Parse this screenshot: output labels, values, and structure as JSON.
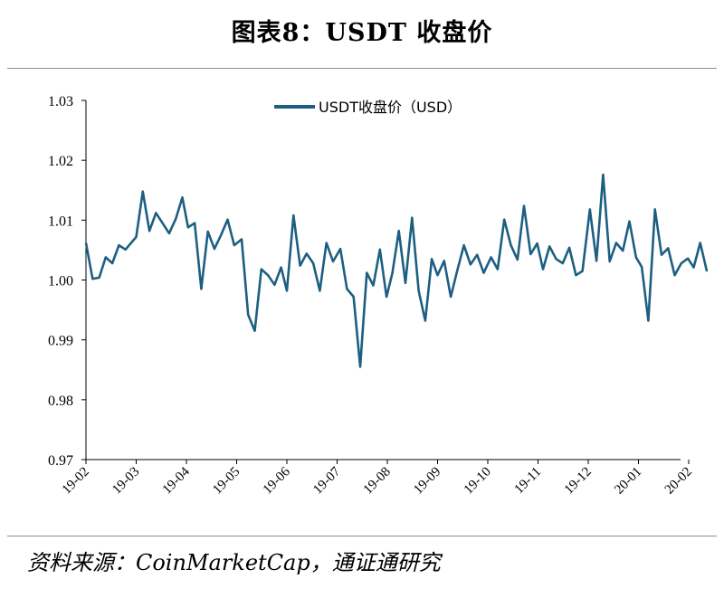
{
  "title": "图表8：USDT 收盘价",
  "source": "资料来源：CoinMarketCap，通证通研究",
  "colors": {
    "line": "#1d5f82",
    "axis": "#000000"
  },
  "chart_data": {
    "type": "line",
    "title": "图表8：USDT 收盘价",
    "xlabel": "",
    "ylabel": "",
    "ylim": [
      0.97,
      1.03
    ],
    "y_ticks": [
      "1.03",
      "1.02",
      "1.01",
      "1.00",
      "0.99",
      "0.98",
      "0.97"
    ],
    "x_ticks": [
      "19-02",
      "19-03",
      "19-04",
      "19-05",
      "19-06",
      "19-07",
      "19-08",
      "19-09",
      "19-10",
      "19-11",
      "19-12",
      "20-01",
      "20-02"
    ],
    "grid": false,
    "legend": "top-center",
    "series": [
      {
        "name": "USDT收盘价（USD）",
        "x": [
          "19-02-01",
          "19-02-05",
          "19-02-09",
          "19-02-13",
          "19-02-17",
          "19-02-21",
          "19-02-25",
          "19-03-01",
          "19-03-05",
          "19-03-09",
          "19-03-13",
          "19-03-17",
          "19-03-21",
          "19-03-25",
          "19-03-29",
          "19-04-02",
          "19-04-06",
          "19-04-10",
          "19-04-14",
          "19-04-18",
          "19-04-22",
          "19-04-26",
          "19-04-30",
          "19-05-04",
          "19-05-08",
          "19-05-12",
          "19-05-16",
          "19-05-20",
          "19-05-24",
          "19-05-28",
          "19-06-01",
          "19-06-05",
          "19-06-09",
          "19-06-13",
          "19-06-17",
          "19-06-21",
          "19-06-25",
          "19-06-29",
          "19-07-03",
          "19-07-07",
          "19-07-11",
          "19-07-15",
          "19-07-19",
          "19-07-23",
          "19-07-27",
          "19-07-31",
          "19-08-04",
          "19-08-08",
          "19-08-12",
          "19-08-16",
          "19-08-20",
          "19-08-24",
          "19-08-28",
          "19-09-01",
          "19-09-05",
          "19-09-09",
          "19-09-13",
          "19-09-17",
          "19-09-21",
          "19-09-25",
          "19-09-29",
          "19-10-03",
          "19-10-07",
          "19-10-11",
          "19-10-15",
          "19-10-19",
          "19-10-23",
          "19-10-27",
          "19-10-31",
          "19-11-04",
          "19-11-08",
          "19-11-12",
          "19-11-16",
          "19-11-20",
          "19-11-24",
          "19-11-28",
          "19-12-02",
          "19-12-06",
          "19-12-10",
          "19-12-14",
          "19-12-18",
          "19-12-22",
          "19-12-26",
          "19-12-30",
          "20-01-03",
          "20-01-07",
          "20-01-11",
          "20-01-15",
          "20-01-19",
          "20-01-23",
          "20-01-27",
          "20-01-31",
          "20-02-04",
          "20-02-08",
          "20-02-12"
        ],
        "values": [
          1.0062,
          1.0002,
          1.0004,
          1.0038,
          1.0028,
          1.0058,
          1.0051,
          1.0072,
          1.0148,
          1.0082,
          1.0112,
          1.0095,
          1.0078,
          1.0102,
          1.0138,
          1.0088,
          1.0095,
          0.9985,
          1.0081,
          1.0052,
          1.0075,
          1.0101,
          1.0058,
          1.0068,
          0.9942,
          0.9915,
          1.0018,
          1.0008,
          0.9992,
          1.0021,
          0.9982,
          1.0108,
          1.0024,
          1.0044,
          1.0028,
          0.9982,
          1.0062,
          1.0031,
          1.0052,
          0.9985,
          0.9972,
          0.9855,
          1.0012,
          0.9991,
          1.0051,
          0.9972,
          1.0011,
          1.0082,
          0.9995,
          1.0104,
          0.9982,
          0.9932,
          1.0035,
          1.0008,
          1.0032,
          0.9972,
          1.0016,
          1.0058,
          1.0026,
          1.0042,
          1.0012,
          1.0038,
          1.0018,
          1.0101,
          1.0058,
          1.0034,
          1.0124,
          1.0043,
          1.0061,
          1.0018,
          1.0056,
          1.0035,
          1.0028,
          1.0054,
          1.0008,
          1.0015,
          1.0118,
          1.0032,
          1.0176,
          1.0031,
          1.0062,
          1.0049,
          1.0098,
          1.0038,
          1.0022,
          0.9932,
          1.0118,
          1.0042,
          1.0053,
          1.0008,
          1.0028,
          1.0036,
          1.0021,
          1.0062,
          1.0015
        ]
      }
    ]
  }
}
